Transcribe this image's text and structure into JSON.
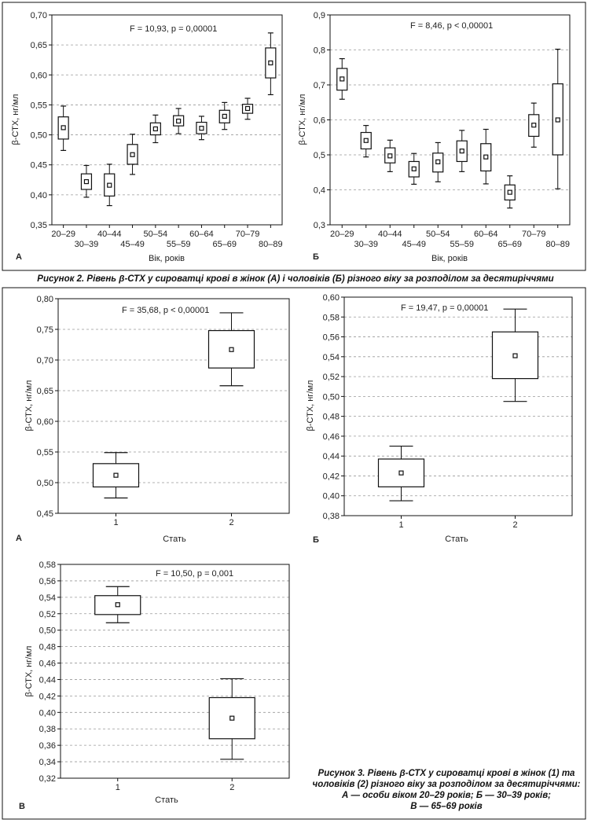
{
  "figure2_caption": "Рисунок 2. Рівень β-СТХ у сироватці крові в жінок (А) і чоловіків (Б) різного віку за розподілом за десятиріччями",
  "figure3_caption_lines": [
    "Рисунок 3. Рівень β-СТХ у сироватці крові в жінок (1) та",
    "чоловіків (2) різного віку за розподілом за десятиріччями:",
    "А — особи віком 20–29 років; Б — 30–39 років;",
    "В — 65–69 років"
  ],
  "colors": {
    "box": "#111111",
    "grid": "#999999",
    "text": "#222222"
  },
  "chart_data": [
    {
      "id": "fig2A",
      "panel_label": "А",
      "type": "box",
      "annotation": "F = 10,93, p = 0,00001",
      "xlabel": "Вік, років",
      "ylabel": "β-СТХ, нг/мл",
      "ylim": [
        0.35,
        0.7
      ],
      "yticks": [
        0.35,
        0.4,
        0.45,
        0.5,
        0.55,
        0.6,
        0.65,
        0.7
      ],
      "ytick_labels": [
        "0,35",
        "0,40",
        "0,45",
        "0,50",
        "0,55",
        "0,60",
        "0,65",
        "0,70"
      ],
      "grid": true,
      "categories": [
        "20–29",
        "30–39",
        "40–44",
        "45–49",
        "50–54",
        "55–59",
        "60–64",
        "65–69",
        "70–79",
        "80–89"
      ],
      "mean": [
        0.512,
        0.422,
        0.416,
        0.467,
        0.51,
        0.523,
        0.511,
        0.531,
        0.544,
        0.62
      ],
      "q1": [
        0.493,
        0.409,
        0.398,
        0.451,
        0.5,
        0.515,
        0.502,
        0.52,
        0.536,
        0.595
      ],
      "q3": [
        0.53,
        0.435,
        0.435,
        0.484,
        0.52,
        0.532,
        0.521,
        0.541,
        0.551,
        0.645
      ],
      "whisker_low": [
        0.474,
        0.396,
        0.382,
        0.434,
        0.487,
        0.502,
        0.492,
        0.509,
        0.526,
        0.567
      ],
      "whisker_high": [
        0.548,
        0.449,
        0.451,
        0.501,
        0.533,
        0.544,
        0.531,
        0.554,
        0.561,
        0.67
      ]
    },
    {
      "id": "fig2B",
      "panel_label": "Б",
      "type": "box",
      "annotation": "F = 8,46, p < 0,00001",
      "xlabel": "Вік, років",
      "ylabel": "β-СТХ, нг/мл",
      "ylim": [
        0.3,
        0.9
      ],
      "yticks": [
        0.3,
        0.4,
        0.5,
        0.6,
        0.7,
        0.8,
        0.9
      ],
      "ytick_labels": [
        "0,3",
        "0,4",
        "0,5",
        "0,6",
        "0,7",
        "0,8",
        "0,9"
      ],
      "grid": true,
      "categories": [
        "20–29",
        "30–39",
        "40–44",
        "45–49",
        "50–54",
        "55–59",
        "60–64",
        "65–69",
        "70–79",
        "80–89"
      ],
      "mean": [
        0.717,
        0.541,
        0.497,
        0.46,
        0.48,
        0.511,
        0.494,
        0.393,
        0.585,
        0.6
      ],
      "q1": [
        0.685,
        0.517,
        0.477,
        0.437,
        0.451,
        0.481,
        0.454,
        0.371,
        0.553,
        0.5
      ],
      "q3": [
        0.747,
        0.564,
        0.52,
        0.481,
        0.505,
        0.54,
        0.532,
        0.414,
        0.615,
        0.703
      ],
      "whisker_low": [
        0.659,
        0.494,
        0.452,
        0.416,
        0.423,
        0.452,
        0.417,
        0.348,
        0.522,
        0.403
      ],
      "whisker_high": [
        0.775,
        0.584,
        0.542,
        0.504,
        0.535,
        0.57,
        0.573,
        0.44,
        0.648,
        0.802
      ]
    },
    {
      "id": "fig3A",
      "panel_label": "А",
      "type": "box",
      "annotation": "F = 35,68, p < 0,00001",
      "xlabel": "Стать",
      "ylabel": "β-СТХ, нг/мл",
      "ylim": [
        0.45,
        0.8
      ],
      "yticks": [
        0.45,
        0.5,
        0.55,
        0.6,
        0.65,
        0.7,
        0.75,
        0.8
      ],
      "ytick_labels": [
        "0,45",
        "0,50",
        "0,55",
        "0,60",
        "0,65",
        "0,70",
        "0,75",
        "0,80"
      ],
      "grid": true,
      "categories": [
        "1",
        "2"
      ],
      "mean": [
        0.512,
        0.717
      ],
      "q1": [
        0.493,
        0.687
      ],
      "q3": [
        0.531,
        0.748
      ],
      "whisker_low": [
        0.475,
        0.658
      ],
      "whisker_high": [
        0.549,
        0.777
      ]
    },
    {
      "id": "fig3B",
      "panel_label": "Б",
      "type": "box",
      "annotation": "F = 19,47, p = 0,00001",
      "xlabel": "Стать",
      "ylabel": "β-СТХ, нг/мл",
      "ylim": [
        0.38,
        0.6
      ],
      "yticks": [
        0.38,
        0.4,
        0.42,
        0.44,
        0.46,
        0.48,
        0.5,
        0.52,
        0.54,
        0.56,
        0.58,
        0.6
      ],
      "ytick_labels": [
        "0,38",
        "0,40",
        "0,42",
        "0,44",
        "0,46",
        "0,48",
        "0,50",
        "0,52",
        "0,54",
        "0,56",
        "0,58",
        "0,60"
      ],
      "grid": true,
      "categories": [
        "1",
        "2"
      ],
      "mean": [
        0.423,
        0.541
      ],
      "q1": [
        0.409,
        0.518
      ],
      "q3": [
        0.437,
        0.565
      ],
      "whisker_low": [
        0.395,
        0.495
      ],
      "whisker_high": [
        0.45,
        0.588
      ]
    },
    {
      "id": "fig3V",
      "panel_label": "В",
      "type": "box",
      "annotation": "F = 10,50, p = 0,001",
      "xlabel": "Стать",
      "ylabel": "β-СТХ, нг/мл",
      "ylim": [
        0.32,
        0.58
      ],
      "yticks": [
        0.32,
        0.34,
        0.36,
        0.38,
        0.4,
        0.42,
        0.44,
        0.46,
        0.48,
        0.5,
        0.52,
        0.54,
        0.56,
        0.58
      ],
      "ytick_labels": [
        "0,32",
        "0,34",
        "0,36",
        "0,38",
        "0,40",
        "0,42",
        "0,44",
        "0,46",
        "0,48",
        "0,50",
        "0,52",
        "0,54",
        "0,56",
        "0,58"
      ],
      "grid": true,
      "categories": [
        "1",
        "2"
      ],
      "mean": [
        0.531,
        0.393
      ],
      "q1": [
        0.519,
        0.368
      ],
      "q3": [
        0.542,
        0.418
      ],
      "whisker_low": [
        0.509,
        0.343
      ],
      "whisker_high": [
        0.553,
        0.441
      ]
    }
  ]
}
